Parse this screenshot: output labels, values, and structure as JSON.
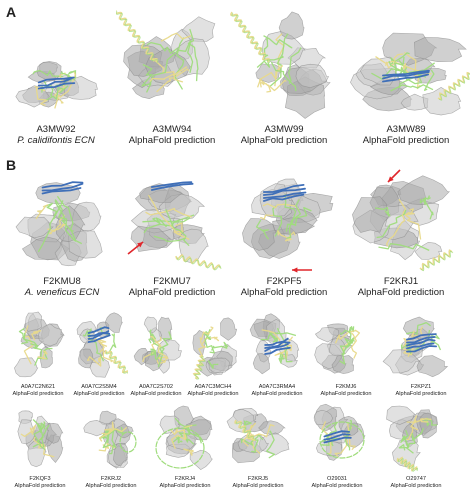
{
  "panels": {
    "a_label": "A",
    "b_label": "B"
  },
  "row_a": [
    {
      "id": "A3MW92",
      "sub": "P. calidifontis ECN",
      "italic": true
    },
    {
      "id": "A3MW94",
      "sub": "AlphaFold prediction",
      "italic": false
    },
    {
      "id": "A3MW99",
      "sub": "AlphaFold prediction",
      "italic": false
    },
    {
      "id": "A3MW89",
      "sub": "AlphaFold prediction",
      "italic": false
    }
  ],
  "row_b": [
    {
      "id": "F2KMU8",
      "sub": "A. veneficus ECN",
      "italic": true
    },
    {
      "id": "F2KMU7",
      "sub": "AlphaFold prediction",
      "italic": false
    },
    {
      "id": "F2KPF5",
      "sub": "AlphaFold prediction",
      "italic": false
    },
    {
      "id": "F2KRJ1",
      "sub": "AlphaFold prediction",
      "italic": false
    }
  ],
  "row_c": [
    {
      "id": "A0A7C2N621",
      "sub": "AlphaFold prediction"
    },
    {
      "id": "A0A7C2S5M4",
      "sub": "AlphaFold prediction"
    },
    {
      "id": "A0A7C2S702",
      "sub": "AlphaFold prediction"
    },
    {
      "id": "A0A7C3MCH4",
      "sub": "AlphaFold prediction"
    },
    {
      "id": "A0A7C3RMA4",
      "sub": "AlphaFold prediction"
    },
    {
      "id": "F2KMJ6",
      "sub": "AlphaFold prediction"
    },
    {
      "id": "F2KPZ1",
      "sub": "AlphaFold prediction"
    }
  ],
  "row_d": [
    {
      "id": "F2KQF3",
      "sub": "AlphaFold prediction"
    },
    {
      "id": "F2KRJ2",
      "sub": "AlphaFold prediction"
    },
    {
      "id": "F2KRJ4",
      "sub": "AlphaFold prediction"
    },
    {
      "id": "F2KRJ5",
      "sub": "AlphaFold prediction"
    },
    {
      "id": "O29031",
      "sub": "AlphaFold prediction"
    },
    {
      "id": "O29747",
      "sub": "AlphaFold prediction"
    }
  ],
  "colors": {
    "surface": "#c9c9c9",
    "surface_dark": "#a9a9a9",
    "helix": "#e8d98a",
    "coil": "#9fdc7c",
    "strand": "#3f6fb8",
    "arrow": "#e0262b"
  }
}
